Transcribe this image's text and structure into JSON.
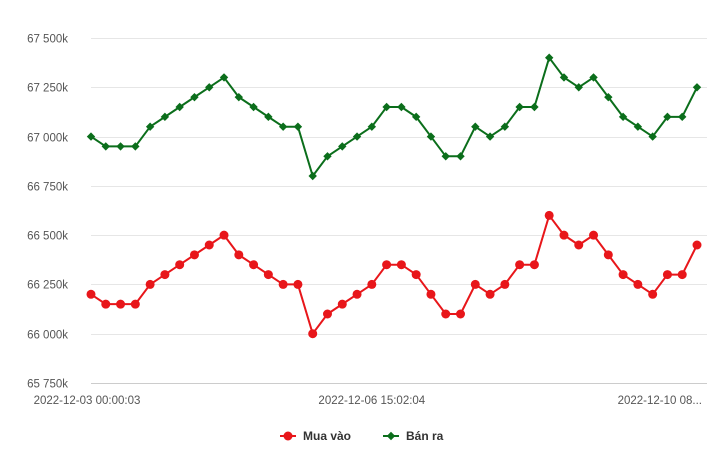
{
  "chart_data": {
    "type": "line",
    "x_ticks": [
      {
        "index": 0,
        "label": "2022-12-03 00:00:03"
      },
      {
        "index": 19,
        "label": "2022-12-06 15:02:04"
      },
      {
        "index": 38,
        "label": "2022-12-10 08..."
      }
    ],
    "ylim": [
      65750000,
      67500000
    ],
    "yticks": [
      65750000,
      66000000,
      66250000,
      66500000,
      66750000,
      67000000,
      67250000,
      67500000
    ],
    "ytick_labels": [
      "65 750k",
      "66 000k",
      "66 250k",
      "66 500k",
      "66 750k",
      "67 000k",
      "67 250k",
      "67 500k"
    ],
    "grid": true,
    "legend": "bottom-center",
    "series": [
      {
        "name": "Mua vào",
        "color": "#e8161a",
        "marker": "circle",
        "values": [
          66200000,
          66150000,
          66150000,
          66150000,
          66250000,
          66300000,
          66350000,
          66400000,
          66450000,
          66500000,
          66400000,
          66350000,
          66300000,
          66250000,
          66250000,
          66000000,
          66100000,
          66150000,
          66200000,
          66250000,
          66350000,
          66350000,
          66300000,
          66200000,
          66100000,
          66100000,
          66250000,
          66200000,
          66250000,
          66350000,
          66350000,
          66600000,
          66500000,
          66450000,
          66500000,
          66400000,
          66300000,
          66250000,
          66200000,
          66300000,
          66300000,
          66450000
        ]
      },
      {
        "name": "Bán ra",
        "color": "#0b6e1b",
        "marker": "diamond",
        "values": [
          67000000,
          66950000,
          66950000,
          66950000,
          67050000,
          67100000,
          67150000,
          67200000,
          67250000,
          67300000,
          67200000,
          67150000,
          67100000,
          67050000,
          67050000,
          66800000,
          66900000,
          66950000,
          67000000,
          67050000,
          67150000,
          67150000,
          67100000,
          67000000,
          66900000,
          66900000,
          67050000,
          67000000,
          67050000,
          67150000,
          67150000,
          67400000,
          67300000,
          67250000,
          67300000,
          67200000,
          67100000,
          67050000,
          67000000,
          67100000,
          67100000,
          67250000
        ]
      }
    ]
  }
}
